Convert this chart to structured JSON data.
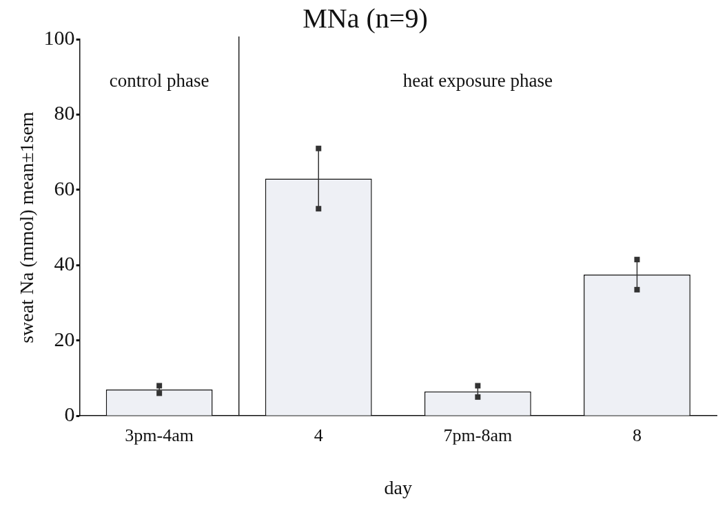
{
  "chart_data": {
    "type": "bar",
    "title": "MNa (n=9)",
    "xlabel": "day",
    "ylabel": "sweat Na (mmol) mean±1sem",
    "categories": [
      "3pm-4am",
      "4",
      "7pm-8am",
      "8"
    ],
    "values": [
      7,
      63,
      6.5,
      37.5
    ],
    "errors": [
      1,
      8,
      1.5,
      4
    ],
    "color": "#eef0f5",
    "ylim": [
      0,
      100
    ],
    "yticks": [
      0,
      20,
      40,
      60,
      80,
      100
    ],
    "grid": false,
    "annotations": [
      "control phase",
      "heat exposure phase"
    ]
  }
}
